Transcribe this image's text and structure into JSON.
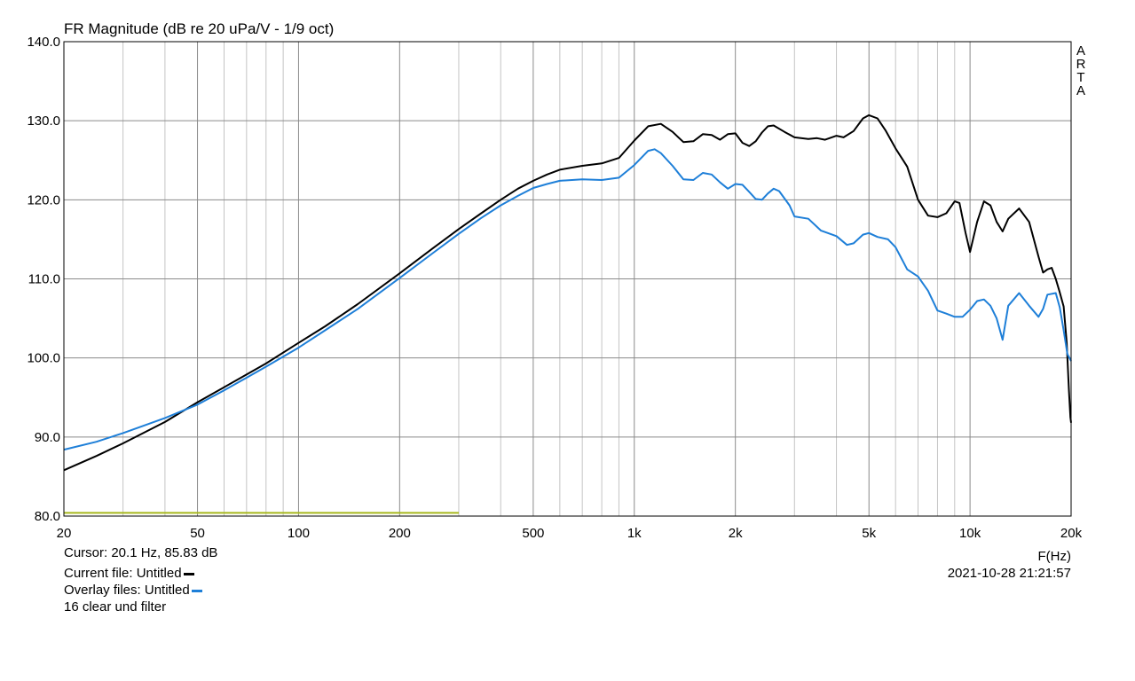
{
  "chart_data": {
    "type": "line",
    "title": "FR Magnitude (dB re 20 uPa/V - 1/9 oct)",
    "watermark": "ARTA",
    "xlabel": "F(Hz)",
    "x_scale": "log",
    "xlim": [
      20,
      20000
    ],
    "ylim": [
      80,
      140
    ],
    "grid": true,
    "x_ticks": [
      {
        "value": 20,
        "label": "20"
      },
      {
        "value": 50,
        "label": "50"
      },
      {
        "value": 100,
        "label": "100"
      },
      {
        "value": 200,
        "label": "200"
      },
      {
        "value": 500,
        "label": "500"
      },
      {
        "value": 1000,
        "label": "1k"
      },
      {
        "value": 2000,
        "label": "2k"
      },
      {
        "value": 5000,
        "label": "5k"
      },
      {
        "value": 10000,
        "label": "10k"
      },
      {
        "value": 20000,
        "label": "20k"
      }
    ],
    "y_ticks": [
      {
        "value": 80,
        "label": "80.0"
      },
      {
        "value": 90,
        "label": "90.0"
      },
      {
        "value": 100,
        "label": "100.0"
      },
      {
        "value": 110,
        "label": "110.0"
      },
      {
        "value": 120,
        "label": "120.0"
      },
      {
        "value": 130,
        "label": "130.0"
      },
      {
        "value": 140,
        "label": "140.0"
      }
    ],
    "series": [
      {
        "color": "#000000",
        "points": [
          [
            20,
            85.8
          ],
          [
            25,
            87.6
          ],
          [
            30,
            89.2
          ],
          [
            40,
            91.9
          ],
          [
            50,
            94.4
          ],
          [
            60,
            96.3
          ],
          [
            70,
            97.9
          ],
          [
            80,
            99.3
          ],
          [
            100,
            101.9
          ],
          [
            120,
            104.0
          ],
          [
            150,
            106.8
          ],
          [
            200,
            110.7
          ],
          [
            250,
            113.8
          ],
          [
            300,
            116.3
          ],
          [
            350,
            118.3
          ],
          [
            400,
            120.0
          ],
          [
            450,
            121.4
          ],
          [
            500,
            122.4
          ],
          [
            550,
            123.2
          ],
          [
            600,
            123.8
          ],
          [
            700,
            124.3
          ],
          [
            800,
            124.6
          ],
          [
            900,
            125.3
          ],
          [
            1000,
            127.5
          ],
          [
            1100,
            129.3
          ],
          [
            1200,
            129.6
          ],
          [
            1300,
            128.6
          ],
          [
            1400,
            127.3
          ],
          [
            1500,
            127.4
          ],
          [
            1600,
            128.3
          ],
          [
            1700,
            128.2
          ],
          [
            1800,
            127.6
          ],
          [
            1900,
            128.3
          ],
          [
            2000,
            128.4
          ],
          [
            2100,
            127.2
          ],
          [
            2200,
            126.8
          ],
          [
            2300,
            127.4
          ],
          [
            2400,
            128.5
          ],
          [
            2500,
            129.3
          ],
          [
            2600,
            129.4
          ],
          [
            2800,
            128.6
          ],
          [
            3000,
            127.9
          ],
          [
            3300,
            127.7
          ],
          [
            3500,
            127.8
          ],
          [
            3700,
            127.6
          ],
          [
            4000,
            128.1
          ],
          [
            4200,
            127.9
          ],
          [
            4500,
            128.7
          ],
          [
            4800,
            130.3
          ],
          [
            5000,
            130.7
          ],
          [
            5300,
            130.3
          ],
          [
            5600,
            128.8
          ],
          [
            6000,
            126.5
          ],
          [
            6500,
            124.2
          ],
          [
            7000,
            120.0
          ],
          [
            7500,
            118.0
          ],
          [
            8000,
            117.8
          ],
          [
            8500,
            118.3
          ],
          [
            9000,
            119.8
          ],
          [
            9300,
            119.6
          ],
          [
            9700,
            115.8
          ],
          [
            10000,
            113.4
          ],
          [
            10500,
            117.2
          ],
          [
            11000,
            119.8
          ],
          [
            11500,
            119.3
          ],
          [
            12000,
            117.2
          ],
          [
            12500,
            116.0
          ],
          [
            13000,
            117.6
          ],
          [
            14000,
            118.9
          ],
          [
            15000,
            117.2
          ],
          [
            16000,
            112.8
          ],
          [
            16500,
            110.8
          ],
          [
            17000,
            111.2
          ],
          [
            17500,
            111.4
          ],
          [
            18000,
            110.0
          ],
          [
            18500,
            108.3
          ],
          [
            19000,
            106.5
          ],
          [
            19400,
            102.0
          ],
          [
            19700,
            96.0
          ],
          [
            19900,
            92.5
          ],
          [
            20000,
            91.8
          ]
        ]
      },
      {
        "color": "#1e7fd8",
        "points": [
          [
            20,
            88.4
          ],
          [
            25,
            89.4
          ],
          [
            30,
            90.5
          ],
          [
            40,
            92.4
          ],
          [
            50,
            94.1
          ],
          [
            60,
            95.9
          ],
          [
            70,
            97.5
          ],
          [
            80,
            98.9
          ],
          [
            100,
            101.3
          ],
          [
            120,
            103.5
          ],
          [
            150,
            106.2
          ],
          [
            200,
            110.1
          ],
          [
            250,
            113.2
          ],
          [
            300,
            115.7
          ],
          [
            350,
            117.7
          ],
          [
            400,
            119.3
          ],
          [
            450,
            120.5
          ],
          [
            500,
            121.5
          ],
          [
            550,
            122.0
          ],
          [
            600,
            122.4
          ],
          [
            700,
            122.6
          ],
          [
            800,
            122.5
          ],
          [
            900,
            122.8
          ],
          [
            1000,
            124.4
          ],
          [
            1100,
            126.2
          ],
          [
            1150,
            126.4
          ],
          [
            1200,
            125.9
          ],
          [
            1300,
            124.3
          ],
          [
            1400,
            122.6
          ],
          [
            1500,
            122.5
          ],
          [
            1600,
            123.4
          ],
          [
            1700,
            123.2
          ],
          [
            1800,
            122.2
          ],
          [
            1900,
            121.4
          ],
          [
            2000,
            122.0
          ],
          [
            2100,
            121.9
          ],
          [
            2200,
            121.0
          ],
          [
            2300,
            120.1
          ],
          [
            2400,
            120.0
          ],
          [
            2500,
            120.8
          ],
          [
            2600,
            121.4
          ],
          [
            2700,
            121.1
          ],
          [
            2900,
            119.3
          ],
          [
            3000,
            117.9
          ],
          [
            3300,
            117.6
          ],
          [
            3600,
            116.1
          ],
          [
            4000,
            115.4
          ],
          [
            4300,
            114.3
          ],
          [
            4500,
            114.5
          ],
          [
            4800,
            115.6
          ],
          [
            5000,
            115.8
          ],
          [
            5300,
            115.3
          ],
          [
            5700,
            115.0
          ],
          [
            6000,
            114.0
          ],
          [
            6500,
            111.2
          ],
          [
            7000,
            110.3
          ],
          [
            7500,
            108.5
          ],
          [
            8000,
            106.0
          ],
          [
            8500,
            105.6
          ],
          [
            9000,
            105.2
          ],
          [
            9500,
            105.2
          ],
          [
            10000,
            106.1
          ],
          [
            10500,
            107.2
          ],
          [
            11000,
            107.4
          ],
          [
            11500,
            106.6
          ],
          [
            12000,
            105.0
          ],
          [
            12500,
            102.3
          ],
          [
            13000,
            106.6
          ],
          [
            14000,
            108.2
          ],
          [
            15000,
            106.6
          ],
          [
            16000,
            105.2
          ],
          [
            16500,
            106.2
          ],
          [
            17000,
            108.0
          ],
          [
            18000,
            108.2
          ],
          [
            18500,
            106.4
          ],
          [
            19000,
            103.5
          ],
          [
            19500,
            100.5
          ],
          [
            20000,
            99.6
          ]
        ]
      },
      {
        "color": "#a6b81c",
        "points": [
          [
            20,
            80.4
          ],
          [
            300,
            80.4
          ]
        ]
      }
    ]
  },
  "footer": {
    "cursor": "Cursor: 20.1 Hz, 85.83 dB",
    "current_file": "Current file: Untitled",
    "overlay_files": "Overlay files: Untitled",
    "note": "16 clear und filter",
    "timestamp": "2021-10-28  21:21:57"
  }
}
